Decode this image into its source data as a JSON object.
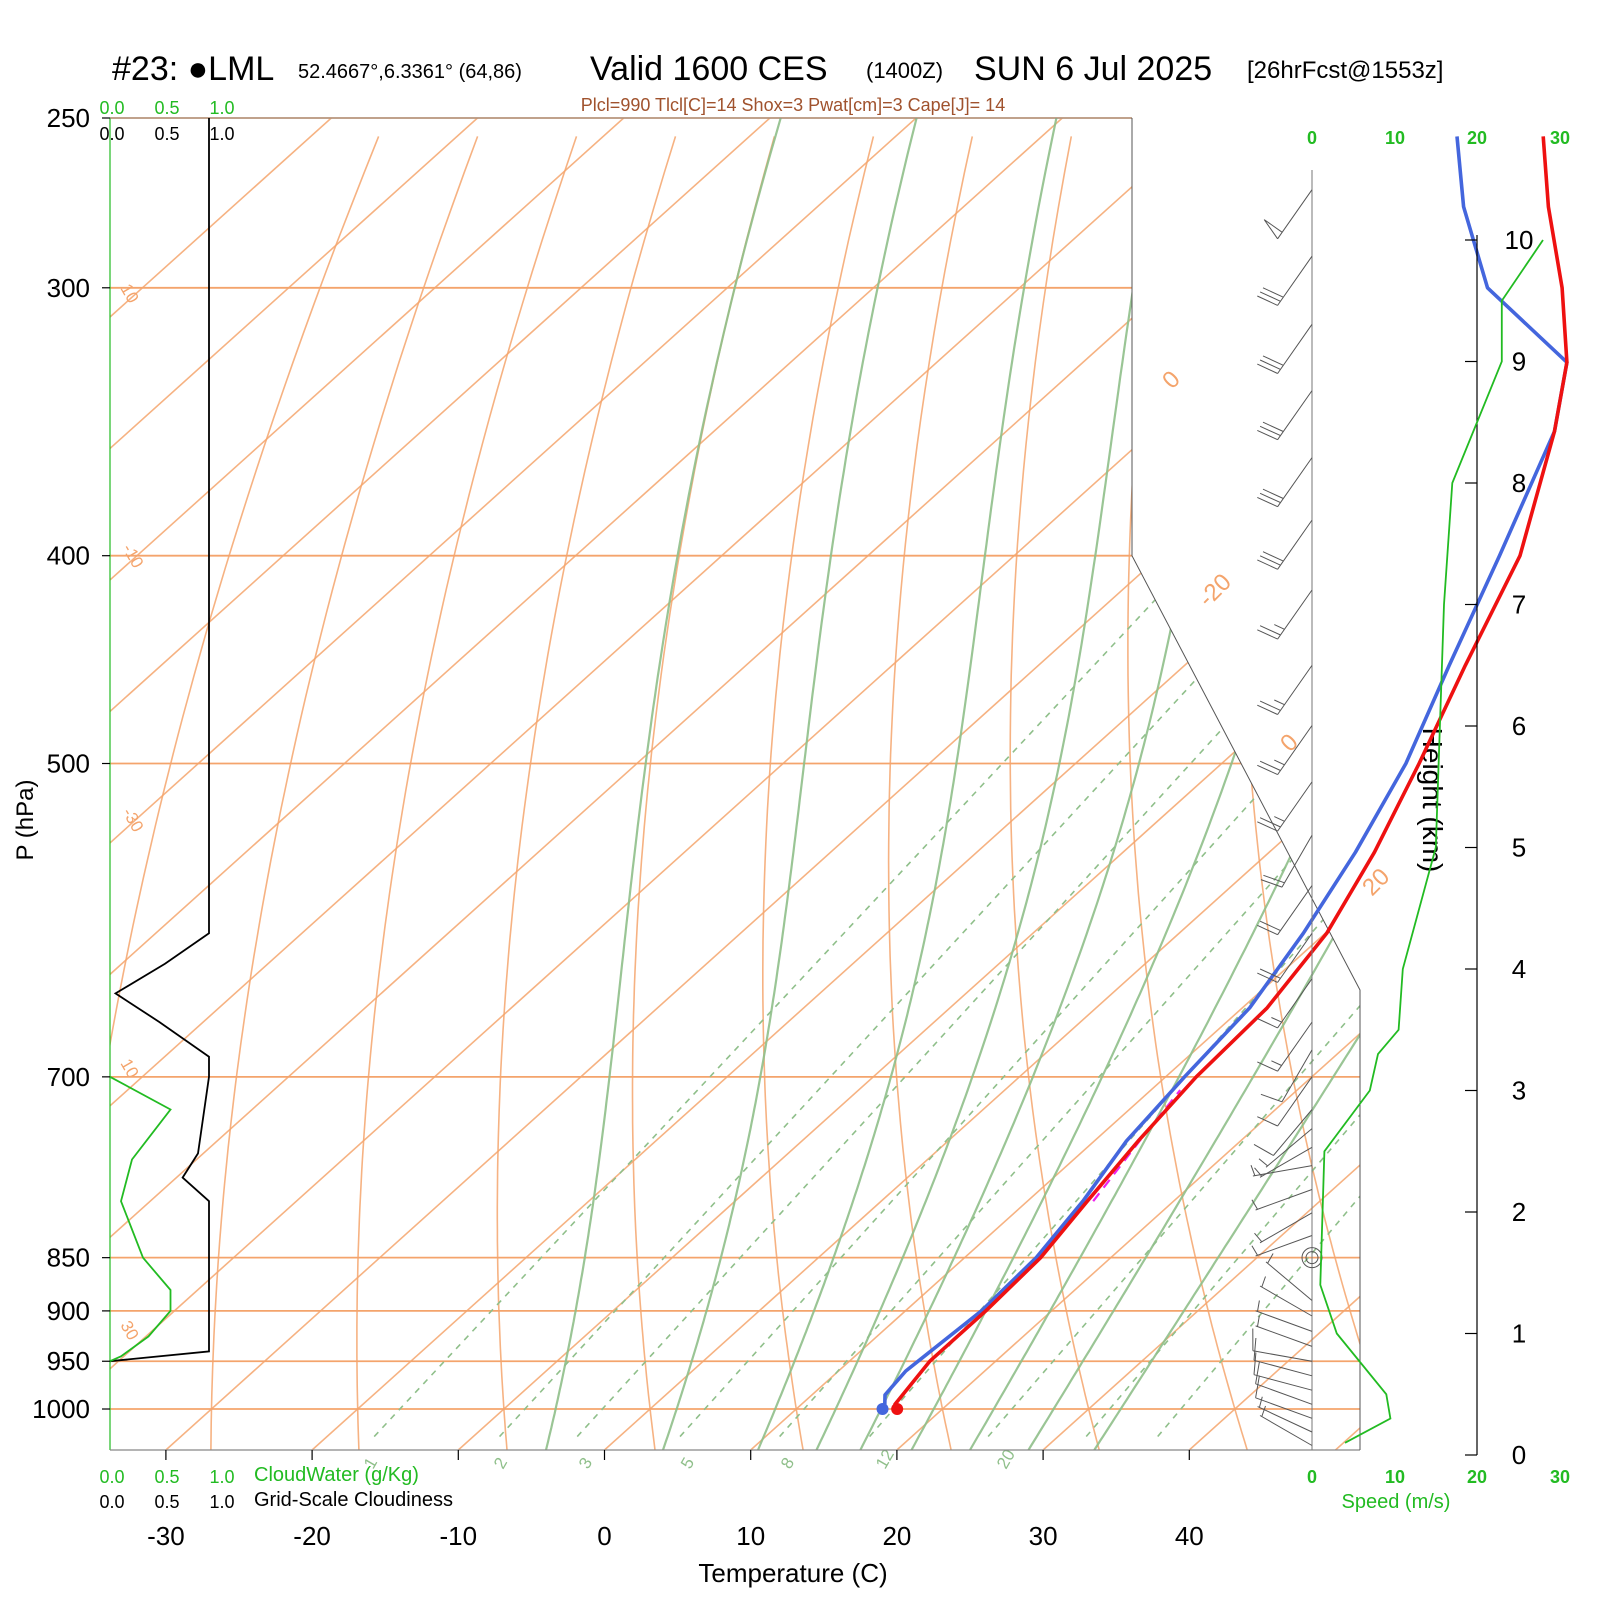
{
  "header": {
    "station_id": "#23: ",
    "station_dot": "●",
    "station_name": "LML",
    "coords": "52.4667°,6.3361° (64,86)",
    "valid": "Valid 1600 CES",
    "zulu": "(1400Z)",
    "date": "SUN 6 Jul 2025",
    "forecast": "[26hrFcst@1553z]"
  },
  "stats": "Plcl=990 Tlcl[C]=14 Shox=3 Pwat[cm]=3 Cape[J]= 14",
  "colors": {
    "temperature": "#ee1111",
    "dewpoint": "#4466dd",
    "parcel": "#ee22ee",
    "isotherm": "#f4a46c",
    "adiabat": "#8fbf8a",
    "cloud_water": "#22bb22",
    "cloudiness": "#000000",
    "barb": "#555555",
    "stats_text": "#a0522d"
  },
  "scales": {
    "cloud_water_ticks": [
      "0.0",
      "0.5",
      "1.0"
    ],
    "cloudiness_ticks": [
      "0.0",
      "0.5",
      "1.0"
    ],
    "cloud_water_label": "CloudWater (g/Kg)",
    "cloudiness_label": "Grid-Scale Cloudiness",
    "speed_ticks": [
      "0",
      "10",
      "20",
      "30"
    ],
    "speed_label": "Speed (m/s)"
  },
  "chart_data": {
    "type": "line",
    "subtype": "skew-T log-P sounding",
    "xlabel": "Temperature (C)",
    "ylabel": "P (hPa)",
    "y2label": "Height (km)",
    "x_ticks": [
      -30,
      -20,
      -10,
      0,
      10,
      20,
      30,
      40
    ],
    "x_range_bottom": [
      -34,
      45
    ],
    "p_ticks": [
      250,
      300,
      400,
      500,
      700,
      850,
      900,
      950,
      1000
    ],
    "p_range": [
      250,
      1045
    ],
    "height_ticks_km": [
      0,
      1,
      2,
      3,
      4,
      5,
      6,
      7,
      8,
      9,
      10
    ],
    "isotherm_labels": [
      "10",
      "0",
      "-10",
      "-20",
      "-30",
      "0",
      "10",
      "20",
      "30"
    ],
    "mixing_ratio_labels": [
      "1",
      "2",
      "3",
      "5",
      "8",
      "12",
      "20"
    ],
    "series": [
      {
        "name": "Temperature",
        "points": [
          [
            1000,
            16.9
          ],
          [
            995,
            16.4
          ],
          [
            985,
            16.2
          ],
          [
            960,
            15.7
          ],
          [
            950,
            15.5
          ],
          [
            900,
            15.5
          ],
          [
            850,
            15.2
          ],
          [
            800,
            14.1
          ],
          [
            750,
            13.0
          ],
          [
            700,
            12.1
          ],
          [
            650,
            11.7
          ],
          [
            600,
            10.1
          ],
          [
            550,
            7.2
          ],
          [
            500,
            3.5
          ],
          [
            450,
            -0.8
          ],
          [
            400,
            -5.4
          ],
          [
            350,
            -12.5
          ],
          [
            325,
            -16.9
          ],
          [
            300,
            -22.9
          ],
          [
            275,
            -30.0
          ],
          [
            255,
            -35.7
          ]
        ]
      },
      {
        "name": "Dewpoint",
        "points": [
          [
            1000,
            15.9
          ],
          [
            995,
            15.7
          ],
          [
            985,
            15.0
          ],
          [
            960,
            14.6
          ],
          [
            950,
            14.7
          ],
          [
            900,
            15.2
          ],
          [
            850,
            14.9
          ],
          [
            800,
            13.8
          ],
          [
            750,
            12.2
          ],
          [
            700,
            11.3
          ],
          [
            650,
            10.5
          ],
          [
            600,
            8.5
          ],
          [
            550,
            5.9
          ],
          [
            500,
            2.6
          ],
          [
            450,
            -1.9
          ],
          [
            400,
            -6.8
          ],
          [
            350,
            -12.5
          ],
          [
            325,
            -16.9
          ],
          [
            300,
            -28.0
          ],
          [
            275,
            -35.8
          ],
          [
            255,
            -41.6
          ]
        ]
      },
      {
        "name": "Parcel",
        "points": [
          [
            800,
            14.5
          ],
          [
            750,
            13.1
          ],
          [
            710,
            12.0
          ]
        ]
      }
    ],
    "cloudiness": [
      [
        250,
        0.9
      ],
      [
        300,
        0.9
      ],
      [
        400,
        0.9
      ],
      [
        500,
        0.9
      ],
      [
        600,
        0.9
      ],
      [
        620,
        0.5
      ],
      [
        640,
        0.05
      ],
      [
        660,
        0.45
      ],
      [
        685,
        0.9
      ],
      [
        700,
        0.9
      ],
      [
        760,
        0.8
      ],
      [
        780,
        0.66
      ],
      [
        800,
        0.9
      ],
      [
        900,
        0.9
      ],
      [
        940,
        0.9
      ],
      [
        950,
        0.0
      ]
    ],
    "cloud_water": [
      [
        700,
        0.0
      ],
      [
        725,
        0.55
      ],
      [
        765,
        0.2
      ],
      [
        800,
        0.1
      ],
      [
        850,
        0.3
      ],
      [
        880,
        0.55
      ],
      [
        900,
        0.55
      ],
      [
        925,
        0.35
      ],
      [
        945,
        0.1
      ],
      [
        950,
        0.0
      ]
    ],
    "wind_speed_profile": [
      [
        0.1,
        4
      ],
      [
        0.3,
        9.5
      ],
      [
        0.5,
        9
      ],
      [
        1.0,
        3
      ],
      [
        1.4,
        1
      ],
      [
        2.5,
        1.5
      ],
      [
        3.0,
        7
      ],
      [
        3.3,
        8
      ],
      [
        3.5,
        10.5
      ],
      [
        4.0,
        11
      ],
      [
        5.0,
        15
      ],
      [
        6.0,
        15.5
      ],
      [
        7.0,
        16
      ],
      [
        8.0,
        17
      ],
      [
        9.0,
        23
      ],
      [
        9.5,
        23
      ],
      [
        10.0,
        28
      ]
    ],
    "wind_barbs": [
      [
        1040,
        300,
        2
      ],
      [
        1025,
        295,
        3
      ],
      [
        1010,
        290,
        5
      ],
      [
        995,
        290,
        6
      ],
      [
        980,
        285,
        6
      ],
      [
        965,
        285,
        5
      ],
      [
        950,
        280,
        5
      ],
      [
        935,
        290,
        4
      ],
      [
        920,
        290,
        3
      ],
      [
        905,
        300,
        3
      ],
      [
        890,
        310,
        3
      ],
      [
        850,
        0,
        0
      ],
      [
        830,
        250,
        3
      ],
      [
        810,
        240,
        3
      ],
      [
        790,
        250,
        3
      ],
      [
        770,
        260,
        4
      ],
      [
        755,
        240,
        4
      ],
      [
        740,
        230,
        4
      ],
      [
        725,
        220,
        5
      ],
      [
        700,
        215,
        6
      ],
      [
        680,
        210,
        6
      ],
      [
        660,
        215,
        7
      ],
      [
        630,
        215,
        8
      ],
      [
        600,
        215,
        10
      ],
      [
        570,
        215,
        10
      ],
      [
        540,
        210,
        10
      ],
      [
        510,
        215,
        12
      ],
      [
        480,
        215,
        13
      ],
      [
        450,
        215,
        14
      ],
      [
        415,
        215,
        14
      ],
      [
        385,
        215,
        15
      ],
      [
        360,
        215,
        15
      ],
      [
        335,
        215,
        15
      ],
      [
        312,
        215,
        15
      ],
      [
        290,
        215,
        15
      ],
      [
        270,
        215,
        25
      ]
    ]
  }
}
